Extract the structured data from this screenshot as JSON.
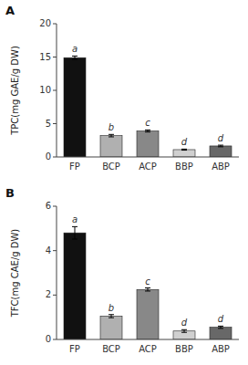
{
  "chart_data": [
    {
      "type": "bar",
      "title": "A",
      "categories": [
        "FP",
        "BCP",
        "ACP",
        "BBP",
        "ABP"
      ],
      "values": [
        14.9,
        3.2,
        3.9,
        1.1,
        1.65
      ],
      "errors": [
        0.25,
        0.18,
        0.15,
        0.08,
        0.12
      ],
      "colors": [
        "#111111",
        "#b0b0b0",
        "#888888",
        "#d0d0d0",
        "#686868"
      ],
      "annotations": [
        "a",
        "b",
        "c",
        "d",
        "d"
      ],
      "ylabel": "TPC(mg GAE/g DW)",
      "ylim": [
        0,
        20
      ],
      "yticks": [
        0,
        5,
        10,
        15,
        20
      ]
    },
    {
      "type": "bar",
      "title": "B",
      "categories": [
        "FP",
        "BCP",
        "ACP",
        "BBP",
        "ABP"
      ],
      "values": [
        4.8,
        1.05,
        2.25,
        0.38,
        0.55
      ],
      "errors": [
        0.28,
        0.07,
        0.07,
        0.06,
        0.05
      ],
      "colors": [
        "#111111",
        "#b0b0b0",
        "#888888",
        "#d0d0d0",
        "#686868"
      ],
      "annotations": [
        "a",
        "b",
        "c",
        "d",
        "d"
      ],
      "ylabel": "TFC(mg CAE/g DW)",
      "ylim": [
        0,
        6
      ],
      "yticks": [
        0,
        2,
        4,
        6
      ]
    }
  ]
}
